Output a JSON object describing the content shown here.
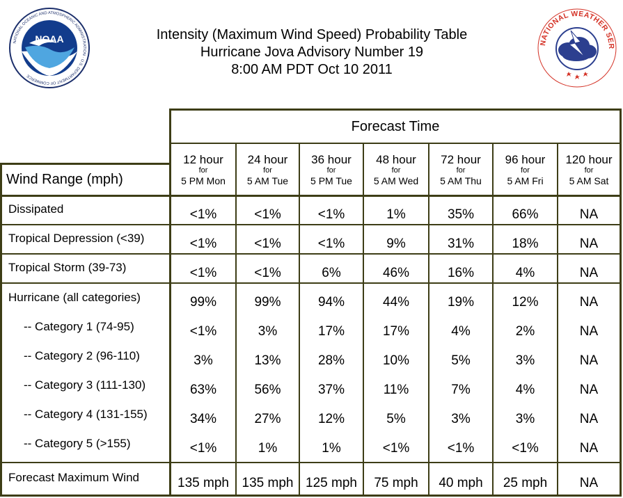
{
  "header": {
    "title_line1": "Intensity (Maximum Wind Speed) Probability Table",
    "title_line2": "Hurricane Jova Advisory Number 19",
    "title_line3": "8:00 AM PDT Oct 10 2011",
    "left_logo": "noaa-logo",
    "left_logo_text": "NOAA",
    "left_logo_ring_text": "NATIONAL OCEANIC AND ATMOSPHERIC ADMINISTRATION · U.S. DEPARTMENT OF COMMERCE",
    "right_logo": "national-weather-service-logo",
    "right_logo_ring_text": "NATIONAL WEATHER SERVICE"
  },
  "table": {
    "forecast_time_label": "Forecast Time",
    "wind_range_label": "Wind Range (mph)",
    "columns": [
      {
        "hour": "12 hour",
        "for": "for",
        "when": "5 PM Mon"
      },
      {
        "hour": "24 hour",
        "for": "for",
        "when": "5 AM Tue"
      },
      {
        "hour": "36 hour",
        "for": "for",
        "when": "5 PM Tue"
      },
      {
        "hour": "48 hour",
        "for": "for",
        "when": "5 AM Wed"
      },
      {
        "hour": "72 hour",
        "for": "for",
        "when": "5 AM Thu"
      },
      {
        "hour": "96 hour",
        "for": "for",
        "when": "5 AM Fri"
      },
      {
        "hour": "120 hour",
        "for": "for",
        "when": "5 AM Sat"
      }
    ],
    "rows": [
      {
        "label": "Dissipated",
        "values": [
          "<1%",
          "<1%",
          "<1%",
          "1%",
          "35%",
          "66%",
          "NA"
        ]
      },
      {
        "label": "Tropical Depression (<39)",
        "values": [
          "<1%",
          "<1%",
          "<1%",
          "9%",
          "31%",
          "18%",
          "NA"
        ]
      },
      {
        "label": "Tropical Storm (39-73)",
        "values": [
          "<1%",
          "<1%",
          "6%",
          "46%",
          "16%",
          "4%",
          "NA"
        ]
      },
      {
        "label": "Hurricane (all categories)",
        "values": [
          "99%",
          "99%",
          "94%",
          "44%",
          "19%",
          "12%",
          "NA"
        ]
      },
      {
        "label": "-- Category 1 (74-95)",
        "values": [
          "<1%",
          "3%",
          "17%",
          "17%",
          "4%",
          "2%",
          "NA"
        ]
      },
      {
        "label": "-- Category 2 (96-110)",
        "values": [
          "3%",
          "13%",
          "28%",
          "10%",
          "5%",
          "3%",
          "NA"
        ]
      },
      {
        "label": "-- Category 3 (111-130)",
        "values": [
          "63%",
          "56%",
          "37%",
          "11%",
          "7%",
          "4%",
          "NA"
        ]
      },
      {
        "label": "-- Category 4 (131-155)",
        "values": [
          "34%",
          "27%",
          "12%",
          "5%",
          "3%",
          "3%",
          "NA"
        ]
      },
      {
        "label": "-- Category 5 (>155)",
        "values": [
          "<1%",
          "1%",
          "1%",
          "<1%",
          "<1%",
          "<1%",
          "NA"
        ]
      },
      {
        "label": "Forecast Maximum Wind",
        "values": [
          "135 mph",
          "135 mph",
          "125 mph",
          "75 mph",
          "40 mph",
          "25 mph",
          "NA"
        ]
      }
    ],
    "line_color": "#3d3d16"
  }
}
